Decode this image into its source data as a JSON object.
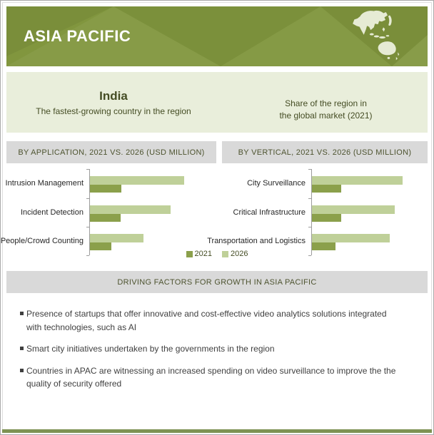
{
  "header": {
    "title": "ASIA PACIFIC",
    "bg_color": "#81963e",
    "map_icon": "asia-pacific-map"
  },
  "highlight": {
    "country": "India",
    "country_note": "The fastest-growing country in the region",
    "share_note_lines": [
      "Share of the region in",
      "the global market (2021)"
    ],
    "bg_color": "#e9eedb"
  },
  "chart_data": [
    {
      "type": "bar",
      "orientation": "horizontal",
      "title": "BY APPLICATION, 2021 VS. 2026 (USD MILLION)",
      "categories": [
        "Intrusion Management",
        "Incident Detection",
        "People/Crowd Counting"
      ],
      "series": [
        {
          "name": "2021",
          "color": "#8ba04b",
          "values": [
            44,
            43,
            30
          ]
        },
        {
          "name": "2026",
          "color": "#bfd099",
          "values": [
            132,
            113,
            75
          ]
        }
      ],
      "xlim": [
        0,
        140
      ],
      "axis_value_labels_shown": false,
      "values_note": "axis unlabeled in source; values are relative estimates",
      "grid": false,
      "legend_position": "bottom-center-shared"
    },
    {
      "type": "bar",
      "orientation": "horizontal",
      "title": "BY VERTICAL, 2021 VS. 2026 (USD MILLION)",
      "categories": [
        "City Surveillance",
        "Critical Infrastructure",
        "Transportation and Logistics"
      ],
      "series": [
        {
          "name": "2021",
          "color": "#8ba04b",
          "values": [
            41,
            41,
            33
          ]
        },
        {
          "name": "2026",
          "color": "#bfd099",
          "values": [
            127,
            116,
            109
          ]
        }
      ],
      "xlim": [
        0,
        140
      ],
      "axis_value_labels_shown": false,
      "values_note": "axis unlabeled in source; values are relative estimates",
      "grid": false,
      "legend_position": "bottom-center-shared"
    }
  ],
  "legend": {
    "items": [
      {
        "label": "2021",
        "color": "#8ba04b"
      },
      {
        "label": "2026",
        "color": "#bfd099"
      }
    ]
  },
  "driving_factors": {
    "title": "DRIVING FACTORS FOR GROWTH IN ASIA PACIFIC",
    "bullets": [
      "Presence of startups that offer innovative and cost-effective video analytics solutions integrated with technologies, such as AI",
      "Smart city initiatives undertaken by the governments in the region",
      "Countries in APAC are witnessing an increased spending on video surveillance to improve the the quality of security offered"
    ]
  },
  "colors": {
    "accent_olive": "#81963e",
    "band_bg": "#e9eedb",
    "bar_2021": "#8ba04b",
    "bar_2026": "#bfd099",
    "section_header_bg": "#d9d9d9",
    "dark_olive_text": "#454d24",
    "map_land": "#e6ebd4",
    "bottom_strip": "#7e9253"
  }
}
